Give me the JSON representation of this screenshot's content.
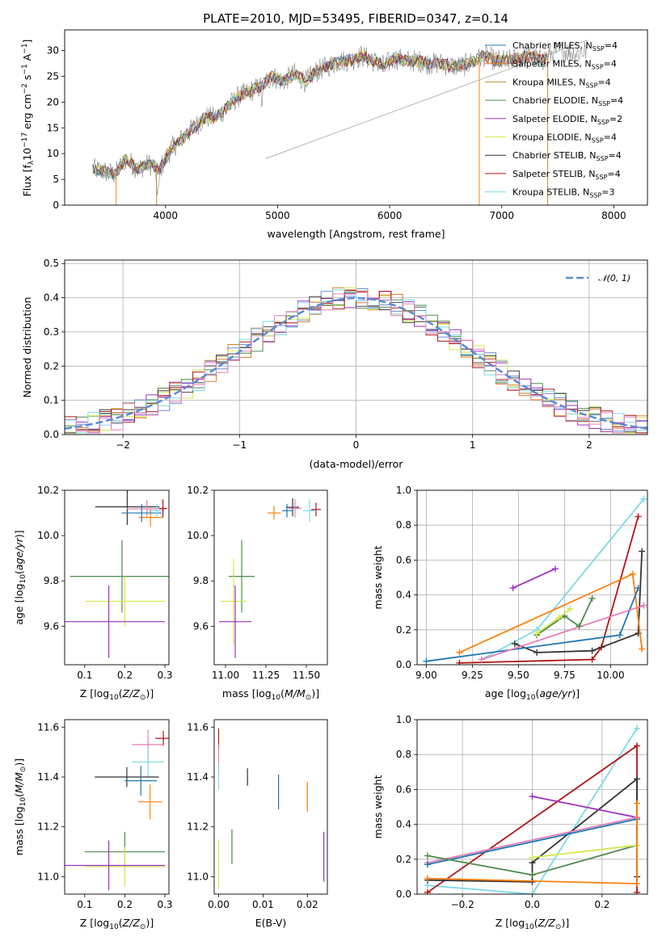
{
  "chart_data": [
    {
      "type": "line",
      "title": "PLATE=2010, MJD=53495, FIBERID=0347, z=0.14",
      "xlabel": "wavelength [Angstrom, rest frame]",
      "ylabel": "Flux [f_λ 10^-17 erg cm^-2 s^-1 A^-1]",
      "xlim": [
        3100,
        8300
      ],
      "ylim": [
        0,
        34
      ],
      "xticks": [
        4000,
        5000,
        6000,
        7000,
        8000
      ],
      "yticks": [
        0,
        5,
        10,
        15,
        20,
        25,
        30
      ],
      "grid": false,
      "legend_position": "right",
      "data_curve": [
        [
          3350,
          7
        ],
        [
          3450,
          6.5
        ],
        [
          3550,
          6
        ],
        [
          3650,
          9
        ],
        [
          3750,
          7
        ],
        [
          3850,
          8
        ],
        [
          3950,
          7
        ],
        [
          4050,
          11
        ],
        [
          4150,
          13
        ],
        [
          4250,
          15
        ],
        [
          4350,
          17
        ],
        [
          4450,
          17
        ],
        [
          4550,
          19
        ],
        [
          4650,
          21
        ],
        [
          4750,
          22
        ],
        [
          4850,
          23
        ],
        [
          4950,
          25
        ],
        [
          5050,
          24
        ],
        [
          5150,
          25.5
        ],
        [
          5250,
          24
        ],
        [
          5350,
          26
        ],
        [
          5450,
          27
        ],
        [
          5550,
          28
        ],
        [
          5650,
          28
        ],
        [
          5750,
          29
        ],
        [
          5850,
          28
        ],
        [
          5950,
          27
        ],
        [
          6050,
          28.5
        ],
        [
          6150,
          28
        ],
        [
          6250,
          28
        ],
        [
          6350,
          27.5
        ],
        [
          6450,
          27.5
        ],
        [
          6550,
          27
        ],
        [
          6650,
          27
        ],
        [
          6750,
          28
        ],
        [
          6850,
          29
        ],
        [
          6950,
          28
        ],
        [
          7050,
          28
        ],
        [
          7150,
          28.5
        ],
        [
          7250,
          29
        ],
        [
          7350,
          28
        ],
        [
          7450,
          29.5
        ],
        [
          7550,
          30
        ],
        [
          7650,
          29.5
        ],
        [
          7750,
          30
        ]
      ],
      "series": [
        {
          "name": "Chabrier MILES, N_SSP=4",
          "name_main": "Chabrier MILES, N",
          "name_sub": "SSP",
          "name_end": "=4",
          "color": "#1f77b4"
        },
        {
          "name": "Salpeter MILES, N_SSP=4",
          "name_main": "Salpeter MILES, N",
          "name_sub": "SSP",
          "name_end": "=4",
          "color": "#ff7f0e"
        },
        {
          "name": "Kroupa MILES, N_SSP=4",
          "name_main": "Kroupa MILES, N",
          "name_sub": "SSP",
          "name_end": "=4",
          "color": "#c88a2a"
        },
        {
          "name": "Chabrier ELODIE, N_SSP=4",
          "name_main": "Chabrier ELODIE, N",
          "name_sub": "SSP",
          "name_end": "=4",
          "color": "#4e8a4e"
        },
        {
          "name": "Salpeter ELODIE, N_SSP=2",
          "name_main": "Salpeter ELODIE, N",
          "name_sub": "SSP",
          "name_end": "=2",
          "color": "#9b30c0"
        },
        {
          "name": "Kroupa ELODIE, N_SSP=4",
          "name_main": "Kroupa ELODIE, N",
          "name_sub": "SSP",
          "name_end": "=4",
          "color": "#d6e84a"
        },
        {
          "name": "Chabrier STELIB, N_SSP=4",
          "name_main": "Chabrier STELIB, N",
          "name_sub": "SSP",
          "name_end": "=4",
          "color": "#333333"
        },
        {
          "name": "Salpeter STELIB, N_SSP=4",
          "name_main": "Salpeter STELIB, N",
          "name_sub": "SSP",
          "name_end": "=4",
          "color": "#b01515"
        },
        {
          "name": "Kroupa STELIB, N_SSP=3",
          "name_main": "Kroupa STELIB, N",
          "name_sub": "SSP",
          "name_end": "=3",
          "color": "#7fd8e6"
        }
      ]
    },
    {
      "type": "line",
      "xlabel": "(data-model)/error",
      "ylabel": "Normed distribution",
      "xlim": [
        -2.5,
        2.5
      ],
      "ylim": [
        0,
        0.51
      ],
      "xticks": [
        -2,
        -1,
        0,
        1,
        2
      ],
      "yticks": [
        0.0,
        0.1,
        0.2,
        0.3,
        0.4,
        0.5
      ],
      "grid": true,
      "legend_position": "top-right",
      "legend": "N(0,1)",
      "reference_curve": {
        "name": "N(0,1)",
        "mean": 0,
        "sigma": 1,
        "color": "#5b8bd6"
      },
      "histogram_bin_width": 0.1,
      "histogram_colors": [
        "#6b8bd6",
        "#e07a2e",
        "#4e8a4e",
        "#9b30c0",
        "#d6e84a",
        "#444444",
        "#b01515",
        "#7fd8e6",
        "#e57fb8"
      ]
    },
    {
      "type": "scatter",
      "xlabel": "Z [log10(Z/Z⊙)]",
      "ylabel": "age  [log10(age/yr)]",
      "xlim": [
        0.05,
        0.31
      ],
      "ylim": [
        9.43,
        10.2
      ],
      "xticks": [
        0.1,
        0.2,
        0.3
      ],
      "yticks": [
        9.6,
        9.8,
        10.0,
        10.2
      ],
      "points": [
        {
          "x": 0.206,
          "y": 10.127,
          "xerr": 0.08,
          "yerr": 0.08,
          "color": "#333333"
        },
        {
          "x": 0.255,
          "y": 10.118,
          "xerr": 0.05,
          "yerr": 0.04,
          "color": "#e57fb8"
        },
        {
          "x": 0.264,
          "y": 10.08,
          "xerr": 0.03,
          "yerr": 0.04,
          "color": "#ff7f0e"
        },
        {
          "x": 0.242,
          "y": 10.1,
          "xerr": 0.05,
          "yerr": 0.04,
          "color": "#1f77b4"
        },
        {
          "x": 0.28,
          "y": 10.11,
          "xerr": 0.02,
          "yerr": 0.03,
          "color": "#7fd8e6"
        },
        {
          "x": 0.295,
          "y": 10.12,
          "xerr": 0.01,
          "yerr": 0.04,
          "color": "#b01515"
        },
        {
          "x": 0.193,
          "y": 9.82,
          "xerr": 0.13,
          "yerr": 0.16,
          "color": "#4e8a4e"
        },
        {
          "x": 0.2,
          "y": 9.71,
          "xerr": 0.1,
          "yerr": 0.11,
          "color": "#d6e84a"
        },
        {
          "x": 0.16,
          "y": 9.62,
          "xerr": 0.14,
          "yerr": 0.16,
          "color": "#9b30c0"
        }
      ]
    },
    {
      "type": "scatter",
      "xlabel": "mass [log10(M/M⊙)]",
      "xlim": [
        10.93,
        11.63
      ],
      "ylim": [
        9.43,
        10.2
      ],
      "xticks": [
        11.0,
        11.25,
        11.5
      ],
      "yticks": [
        9.6,
        9.8,
        10.0,
        10.2
      ],
      "points": [
        {
          "x": 11.415,
          "y": 10.125,
          "xerr": 0.04,
          "yerr": 0.04,
          "color": "#333333"
        },
        {
          "x": 11.56,
          "y": 10.115,
          "xerr": 0.03,
          "yerr": 0.03,
          "color": "#b01515"
        },
        {
          "x": 11.52,
          "y": 10.11,
          "xerr": 0.04,
          "yerr": 0.05,
          "color": "#7fd8e6"
        },
        {
          "x": 11.43,
          "y": 10.12,
          "xerr": 0.04,
          "yerr": 0.04,
          "color": "#e57fb8"
        },
        {
          "x": 11.3,
          "y": 10.1,
          "xerr": 0.04,
          "yerr": 0.03,
          "color": "#ff7f0e"
        },
        {
          "x": 11.38,
          "y": 10.11,
          "xerr": 0.03,
          "yerr": 0.03,
          "color": "#1f77b4"
        },
        {
          "x": 11.1,
          "y": 9.82,
          "xerr": 0.08,
          "yerr": 0.16,
          "color": "#4e8a4e"
        },
        {
          "x": 11.05,
          "y": 9.71,
          "xerr": 0.08,
          "yerr": 0.19,
          "color": "#d6e84a"
        },
        {
          "x": 11.06,
          "y": 9.62,
          "xerr": 0.1,
          "yerr": 0.16,
          "color": "#9b30c0"
        }
      ]
    },
    {
      "type": "line",
      "xlabel": "age  [log10(age/yr)]",
      "ylabel": "mass weight",
      "xlim": [
        8.95,
        10.2
      ],
      "ylim": [
        0,
        1.0
      ],
      "xticks": [
        9.0,
        9.25,
        9.5,
        9.75,
        10.0
      ],
      "yticks": [
        0.0,
        0.2,
        0.4,
        0.6,
        0.8,
        1.0
      ],
      "grid": true,
      "series": [
        {
          "color": "#7fd8e6",
          "points": [
            [
              9.3,
              0.03
            ],
            [
              9.6,
              0.2
            ],
            [
              10.18,
              0.95
            ]
          ]
        },
        {
          "color": "#b01515",
          "points": [
            [
              9.18,
              0.01
            ],
            [
              9.9,
              0.03
            ],
            [
              9.95,
              0.1
            ],
            [
              10.15,
              0.85
            ]
          ]
        },
        {
          "color": "#333333",
          "points": [
            [
              9.48,
              0.12
            ],
            [
              9.6,
              0.07
            ],
            [
              9.9,
              0.08
            ],
            [
              10.15,
              0.18
            ],
            [
              10.17,
              0.65
            ]
          ]
        },
        {
          "color": "#ff7f0e",
          "points": [
            [
              9.18,
              0.07
            ],
            [
              10.12,
              0.52
            ],
            [
              10.17,
              0.09
            ]
          ]
        },
        {
          "color": "#1f77b4",
          "points": [
            [
              9.0,
              0.02
            ],
            [
              10.05,
              0.17
            ],
            [
              10.15,
              0.44
            ]
          ]
        },
        {
          "color": "#e57fb8",
          "points": [
            [
              9.3,
              0.03
            ],
            [
              10.18,
              0.34
            ]
          ]
        },
        {
          "color": "#9b30c0",
          "points": [
            [
              9.47,
              0.44
            ],
            [
              9.7,
              0.55
            ]
          ]
        },
        {
          "color": "#4e8a4e",
          "points": [
            [
              9.6,
              0.17
            ],
            [
              9.75,
              0.28
            ],
            [
              9.83,
              0.22
            ],
            [
              9.9,
              0.38
            ]
          ]
        },
        {
          "color": "#d6e84a",
          "points": [
            [
              9.6,
              0.18
            ],
            [
              9.72,
              0.27
            ],
            [
              9.78,
              0.32
            ]
          ]
        }
      ]
    },
    {
      "type": "scatter",
      "xlabel": "Z [log10(Z/Z⊙)]",
      "ylabel": "mass [log10(M/M⊙)]",
      "xlim": [
        0.05,
        0.31
      ],
      "ylim": [
        10.93,
        11.63
      ],
      "xticks": [
        0.1,
        0.2,
        0.3
      ],
      "yticks": [
        11.0,
        11.2,
        11.4,
        11.6
      ],
      "points": [
        {
          "x": 0.296,
          "y": 11.555,
          "xerr": 0.02,
          "yerr": 0.03,
          "color": "#b01515"
        },
        {
          "x": 0.258,
          "y": 11.53,
          "xerr": 0.04,
          "yerr": 0.06,
          "color": "#e57fb8"
        },
        {
          "x": 0.258,
          "y": 11.46,
          "xerr": 0.04,
          "yerr": 0.06,
          "color": "#7fd8e6"
        },
        {
          "x": 0.205,
          "y": 11.4,
          "xerr": 0.08,
          "yerr": 0.04,
          "color": "#333333"
        },
        {
          "x": 0.24,
          "y": 11.385,
          "xerr": 0.04,
          "yerr": 0.06,
          "color": "#1f77b4"
        },
        {
          "x": 0.263,
          "y": 11.3,
          "xerr": 0.03,
          "yerr": 0.07,
          "color": "#ff7f0e"
        },
        {
          "x": 0.2,
          "y": 11.1,
          "xerr": 0.1,
          "yerr": 0.08,
          "color": "#4e8a4e"
        },
        {
          "x": 0.2,
          "y": 11.04,
          "xerr": 0.1,
          "yerr": 0.08,
          "color": "#d6e84a"
        },
        {
          "x": 0.16,
          "y": 11.045,
          "xerr": 0.14,
          "yerr": 0.1,
          "color": "#9b30c0"
        }
      ]
    },
    {
      "type": "scatter",
      "xlabel": "E(B-V)",
      "xlim": [
        -0.001,
        0.0245
      ],
      "ylim": [
        10.93,
        11.63
      ],
      "xticks": [
        0.0,
        0.01,
        0.02
      ],
      "yticks": [
        11.0,
        11.2,
        11.4,
        11.6
      ],
      "points": [
        {
          "x": 0.0,
          "y": 11.555,
          "xerr": 0,
          "yerr": 0.04,
          "color": "#b01515"
        },
        {
          "x": 0.0,
          "y": 11.48,
          "xerr": 0,
          "yerr": 0.05,
          "color": "#e57fb8"
        },
        {
          "x": 0.0,
          "y": 11.4,
          "xerr": 0,
          "yerr": 0.05,
          "color": "#7fd8e6"
        },
        {
          "x": 0.0065,
          "y": 11.4,
          "xerr": 0,
          "yerr": 0.035,
          "color": "#333333"
        },
        {
          "x": 0.0135,
          "y": 11.34,
          "xerr": 0,
          "yerr": 0.07,
          "color": "#1f77b4"
        },
        {
          "x": 0.02,
          "y": 11.32,
          "xerr": 0,
          "yerr": 0.06,
          "color": "#ff7f0e"
        },
        {
          "x": 0.003,
          "y": 11.12,
          "xerr": 0,
          "yerr": 0.07,
          "color": "#4e8a4e"
        },
        {
          "x": 0.0,
          "y": 11.05,
          "xerr": 0,
          "yerr": 0.1,
          "color": "#d6e84a"
        },
        {
          "x": 0.0237,
          "y": 11.08,
          "xerr": 0,
          "yerr": 0.1,
          "color": "#9b30c0"
        }
      ]
    },
    {
      "type": "line",
      "xlabel": "Z [log10(Z/Z⊙)]",
      "ylabel": "mass weight",
      "xlim": [
        -0.33,
        0.33
      ],
      "ylim": [
        0,
        1.0
      ],
      "xticks": [
        -0.2,
        0.0,
        0.2
      ],
      "yticks": [
        0.0,
        0.2,
        0.4,
        0.6,
        0.8,
        1.0
      ],
      "grid": true,
      "series": [
        {
          "color": "#7fd8e6",
          "points": [
            [
              -0.3,
              0.05
            ],
            [
              0.0,
              0.0
            ],
            [
              0.3,
              0.95
            ]
          ]
        },
        {
          "color": "#b01515",
          "points": [
            [
              -0.3,
              0.01
            ],
            [
              0.3,
              0.85
            ],
            [
              0.3,
              0.01
            ]
          ]
        },
        {
          "color": "#333333",
          "points": [
            [
              -0.3,
              0.08
            ],
            [
              0.0,
              0.07
            ],
            [
              0.0,
              0.18
            ],
            [
              0.3,
              0.66
            ],
            [
              0.3,
              0.1
            ]
          ]
        },
        {
          "color": "#9b30c0",
          "points": [
            [
              0.0,
              0.56
            ],
            [
              0.3,
              0.44
            ]
          ]
        },
        {
          "color": "#e57fb8",
          "points": [
            [
              -0.3,
              0.18
            ],
            [
              0.3,
              0.44
            ]
          ]
        },
        {
          "color": "#1f77b4",
          "points": [
            [
              -0.3,
              0.17
            ],
            [
              0.3,
              0.43
            ]
          ]
        },
        {
          "color": "#4e8a4e",
          "points": [
            [
              -0.3,
              0.22
            ],
            [
              0.0,
              0.11
            ],
            [
              0.3,
              0.28
            ]
          ]
        },
        {
          "color": "#d6e84a",
          "points": [
            [
              0.0,
              0.21
            ],
            [
              0.3,
              0.28
            ]
          ]
        },
        {
          "color": "#ff7f0e",
          "points": [
            [
              -0.3,
              0.09
            ],
            [
              0.3,
              0.06
            ],
            [
              0.3,
              0.52
            ]
          ]
        }
      ]
    }
  ]
}
